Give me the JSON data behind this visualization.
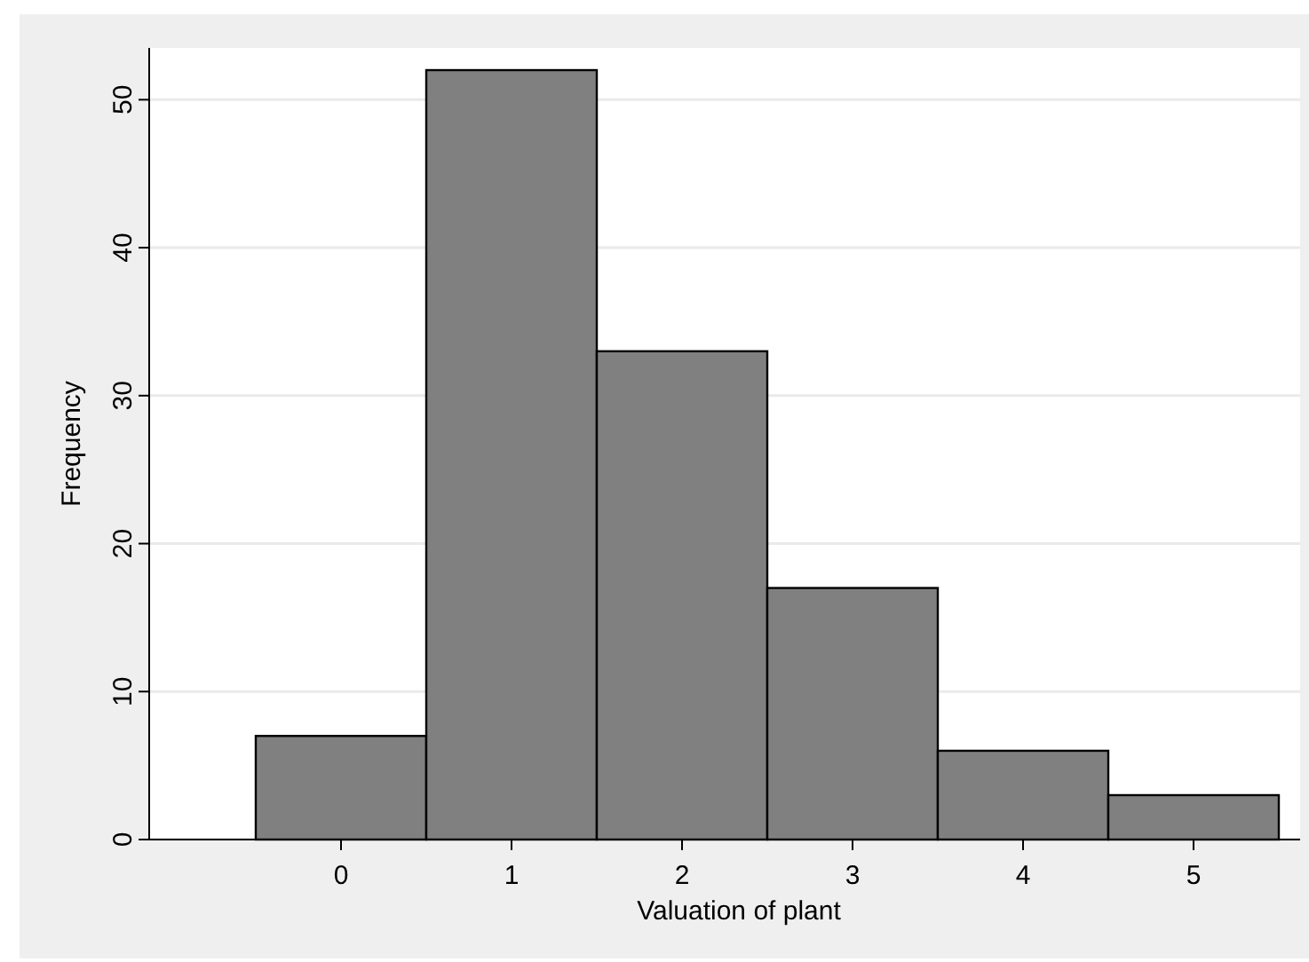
{
  "chart_data": {
    "type": "histogram",
    "xlabel": "Valuation of plant",
    "ylabel": "Frequency",
    "bins": [
      -0.5,
      0.5,
      1.5,
      2.5,
      3.5,
      4.5,
      5.5
    ],
    "values": [
      7,
      52,
      33,
      17,
      6,
      3
    ],
    "color": "#808080",
    "xlim": [
      -1.125,
      5.625
    ],
    "xticks": [
      0,
      1,
      2,
      3,
      4,
      5
    ],
    "ylim": [
      0,
      53.5
    ],
    "yticks": [
      0,
      10,
      20,
      30,
      40,
      50
    ],
    "grid": "y"
  }
}
